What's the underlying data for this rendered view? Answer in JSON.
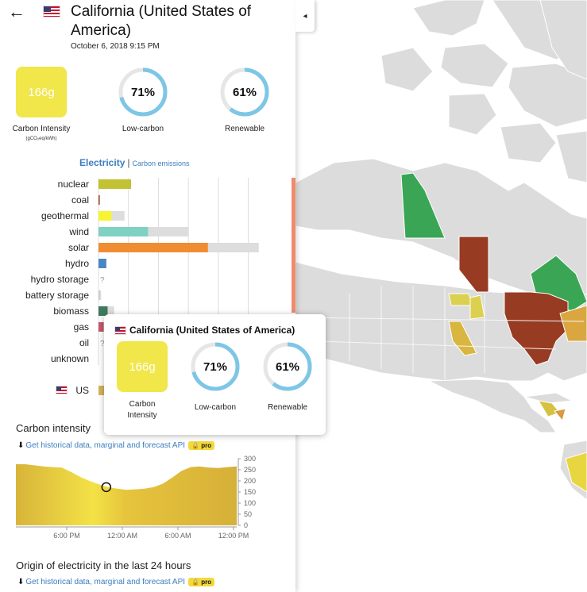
{
  "panel": {
    "zone_name": "California (United States of America)",
    "date": "October 6, 2018 9:15 PM",
    "collapse_arrow": "◂",
    "back_arrow": "←",
    "metrics": {
      "carbon_intensity_value": "166g",
      "carbon_intensity_label": "Carbon Intensity",
      "carbon_intensity_unit": "(gCO₂eq/kWh)",
      "low_carbon_value": "71%",
      "low_carbon_label": "Low-carbon",
      "low_carbon_fraction": 0.71,
      "renewable_value": "61%",
      "renewable_label": "Renewable",
      "renewable_fraction": 0.61
    },
    "tabs": {
      "electricity": "Electricity",
      "separator": "|",
      "emissions": "Carbon emissions"
    },
    "api_link_text": "Get historical data, marginal and forecast API",
    "pro_label": "pro",
    "carbon_intensity_title": "Carbon intensity",
    "origin_title": "Origin of electricity in the last 24 hours",
    "colors": {
      "ci_yellow": "#f1e64a",
      "ring_blue": "#7dc6e6",
      "link_blue": "#3b7dbf",
      "scroll_orange": "#f08a6a"
    }
  },
  "chart_data": [
    {
      "type": "bar",
      "categories": [
        "nuclear",
        "coal",
        "geothermal",
        "wind",
        "solar",
        "hydro",
        "hydro storage",
        "battery storage",
        "biomass",
        "gas",
        "oil",
        "unknown"
      ],
      "series": [
        {
          "values": [
            0.25,
            0.01,
            0.1,
            0.38,
            0.84,
            0.06,
            null,
            0,
            0.07,
            0.04,
            null,
            0
          ]
        },
        {
          "values": [
            0.25,
            0.01,
            0.2,
            0.69,
            1.23,
            0.06,
            null,
            0.02,
            0.12,
            0.04,
            null,
            0
          ]
        }
      ],
      "colors": [
        "#c2c234",
        "#a0522d",
        "#f5f532",
        "#7fd1c1",
        "#f08c32",
        "#4a86c4",
        "#999999",
        "#999999",
        "#3e7a5e",
        "#c45a6c",
        "#999999",
        "#999999"
      ],
      "unknown_marker": "?",
      "exchange_label": "US",
      "exchange_color": "#d4b458"
    },
    {
      "type": "area",
      "x_ticks": [
        "6:00 PM",
        "12:00 AM",
        "6:00 AM",
        "12:00 PM"
      ],
      "y_ticks": [
        0,
        50,
        100,
        150,
        200,
        250,
        300
      ],
      "ylim": [
        0,
        300
      ],
      "values": [
        275,
        275,
        270,
        265,
        262,
        260,
        240,
        218,
        200,
        185,
        172,
        165,
        160,
        162,
        165,
        172,
        188,
        215,
        245,
        262,
        265,
        260,
        258,
        262,
        265
      ],
      "current_index": 10,
      "color": "#e8c43c"
    }
  ],
  "tooltip": {
    "title": "California (United States of America)",
    "ci_value": "166g",
    "ci_label_line1": "Carbon",
    "ci_label_line2": "Intensity",
    "low_carbon_value": "71%",
    "low_carbon_label": "Low-carbon",
    "renewable_value": "61%",
    "renewable_label": "Renewable"
  }
}
